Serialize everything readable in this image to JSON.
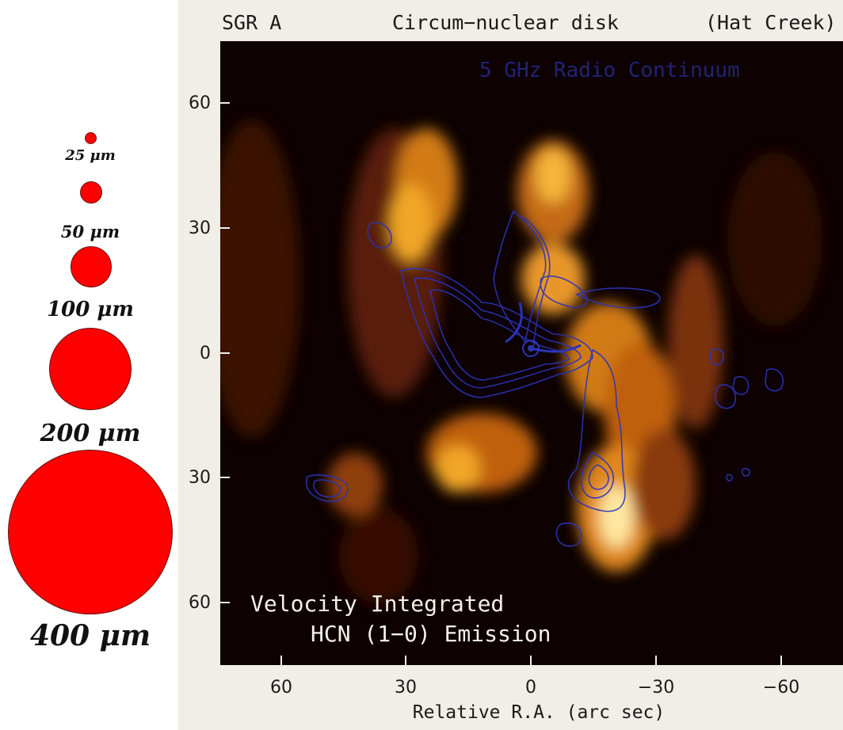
{
  "scale": {
    "items": [
      {
        "label": "25 μm",
        "size_um": 25
      },
      {
        "label": "50 μm",
        "size_um": 50
      },
      {
        "label": "100 μm",
        "size_um": 100
      },
      {
        "label": "200 μm",
        "size_um": 200
      },
      {
        "label": "400 μm",
        "size_um": 400
      }
    ],
    "color": "#ff0000"
  },
  "figure": {
    "source": "SGR A",
    "title": "Circum−nuclear disk",
    "telescope": "(Hat Creek)",
    "overlay_label": "5 GHz Radio Continuum",
    "emission_line1": "Velocity Integrated",
    "emission_line2": "HCN (1−0) Emission",
    "x_axis_title": "Relative R.A. (arc sec)",
    "y_ticks": [
      "60",
      "30",
      "0",
      "30",
      "60"
    ],
    "x_ticks": [
      "60",
      "30",
      "0",
      "−30",
      "−60"
    ],
    "colors": {
      "contour": "#2b34b8",
      "emission": "#f0a020",
      "background": "#0d0201"
    }
  }
}
